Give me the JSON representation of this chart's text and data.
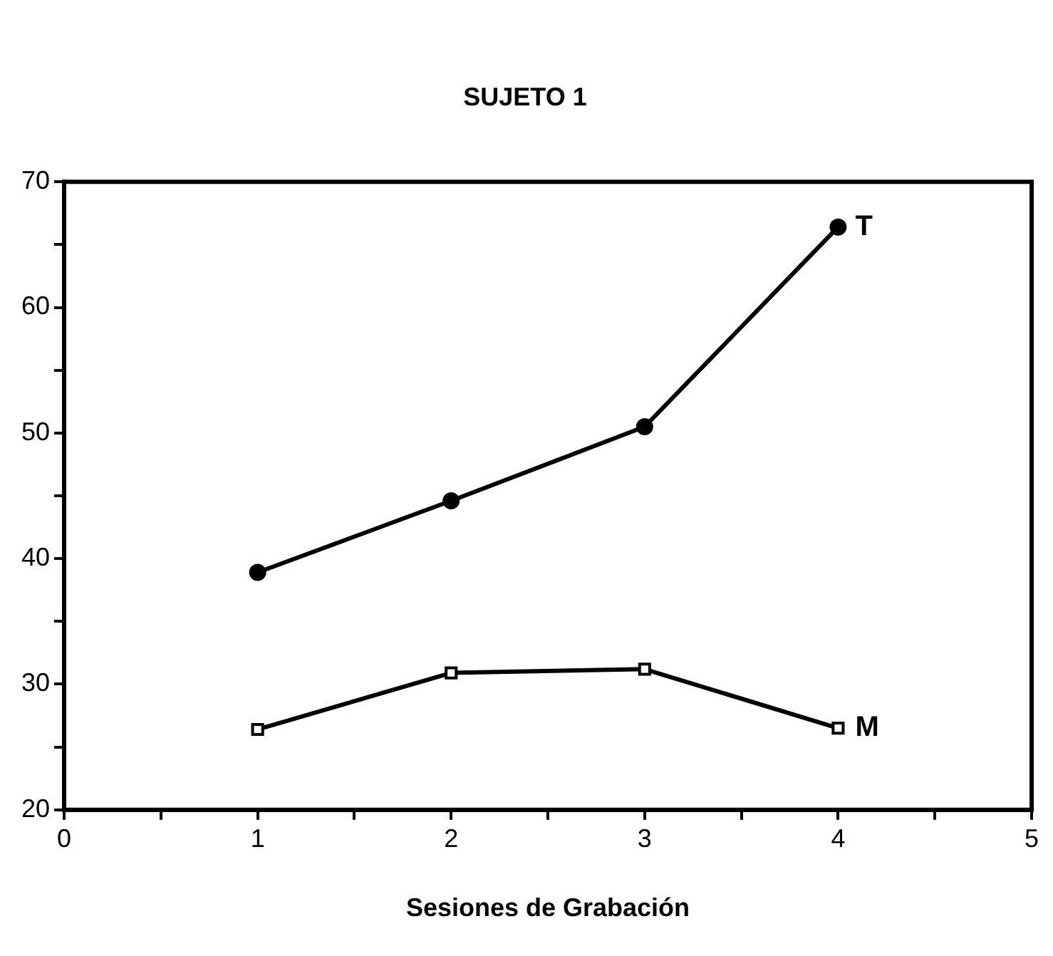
{
  "chart_data": {
    "type": "line",
    "title": "SUJETO 1",
    "xlabel": "Sesiones de Grabación",
    "x": [
      1,
      2,
      3,
      4
    ],
    "series": [
      {
        "name": "T",
        "color": "#000000",
        "marker": "circle",
        "values": [
          38.9,
          44.6,
          50.5,
          66.4
        ]
      },
      {
        "name": "M",
        "color": "#000000",
        "marker": "square",
        "values": [
          26.4,
          30.9,
          31.2,
          26.5
        ]
      }
    ],
    "xlim": [
      0,
      5
    ],
    "xticks": [
      0,
      {
        "value": 0.5,
        "label": null
      },
      1,
      {
        "value": 1.5,
        "label": null
      },
      2,
      {
        "value": 2.5,
        "label": null
      },
      3,
      {
        "value": 3.5,
        "label": null
      },
      4,
      {
        "value": 4.5,
        "label": null
      },
      5
    ],
    "ylim": [
      20,
      70
    ],
    "yticks": [
      20,
      {
        "value": 25,
        "label": null
      },
      30,
      {
        "value": 35,
        "label": null
      },
      40,
      {
        "value": 45,
        "label": null
      },
      50,
      {
        "value": 55,
        "label": null
      },
      60,
      {
        "value": 65,
        "label": null
      },
      70
    ],
    "grid": false,
    "legend": false,
    "line_style": "solid"
  }
}
